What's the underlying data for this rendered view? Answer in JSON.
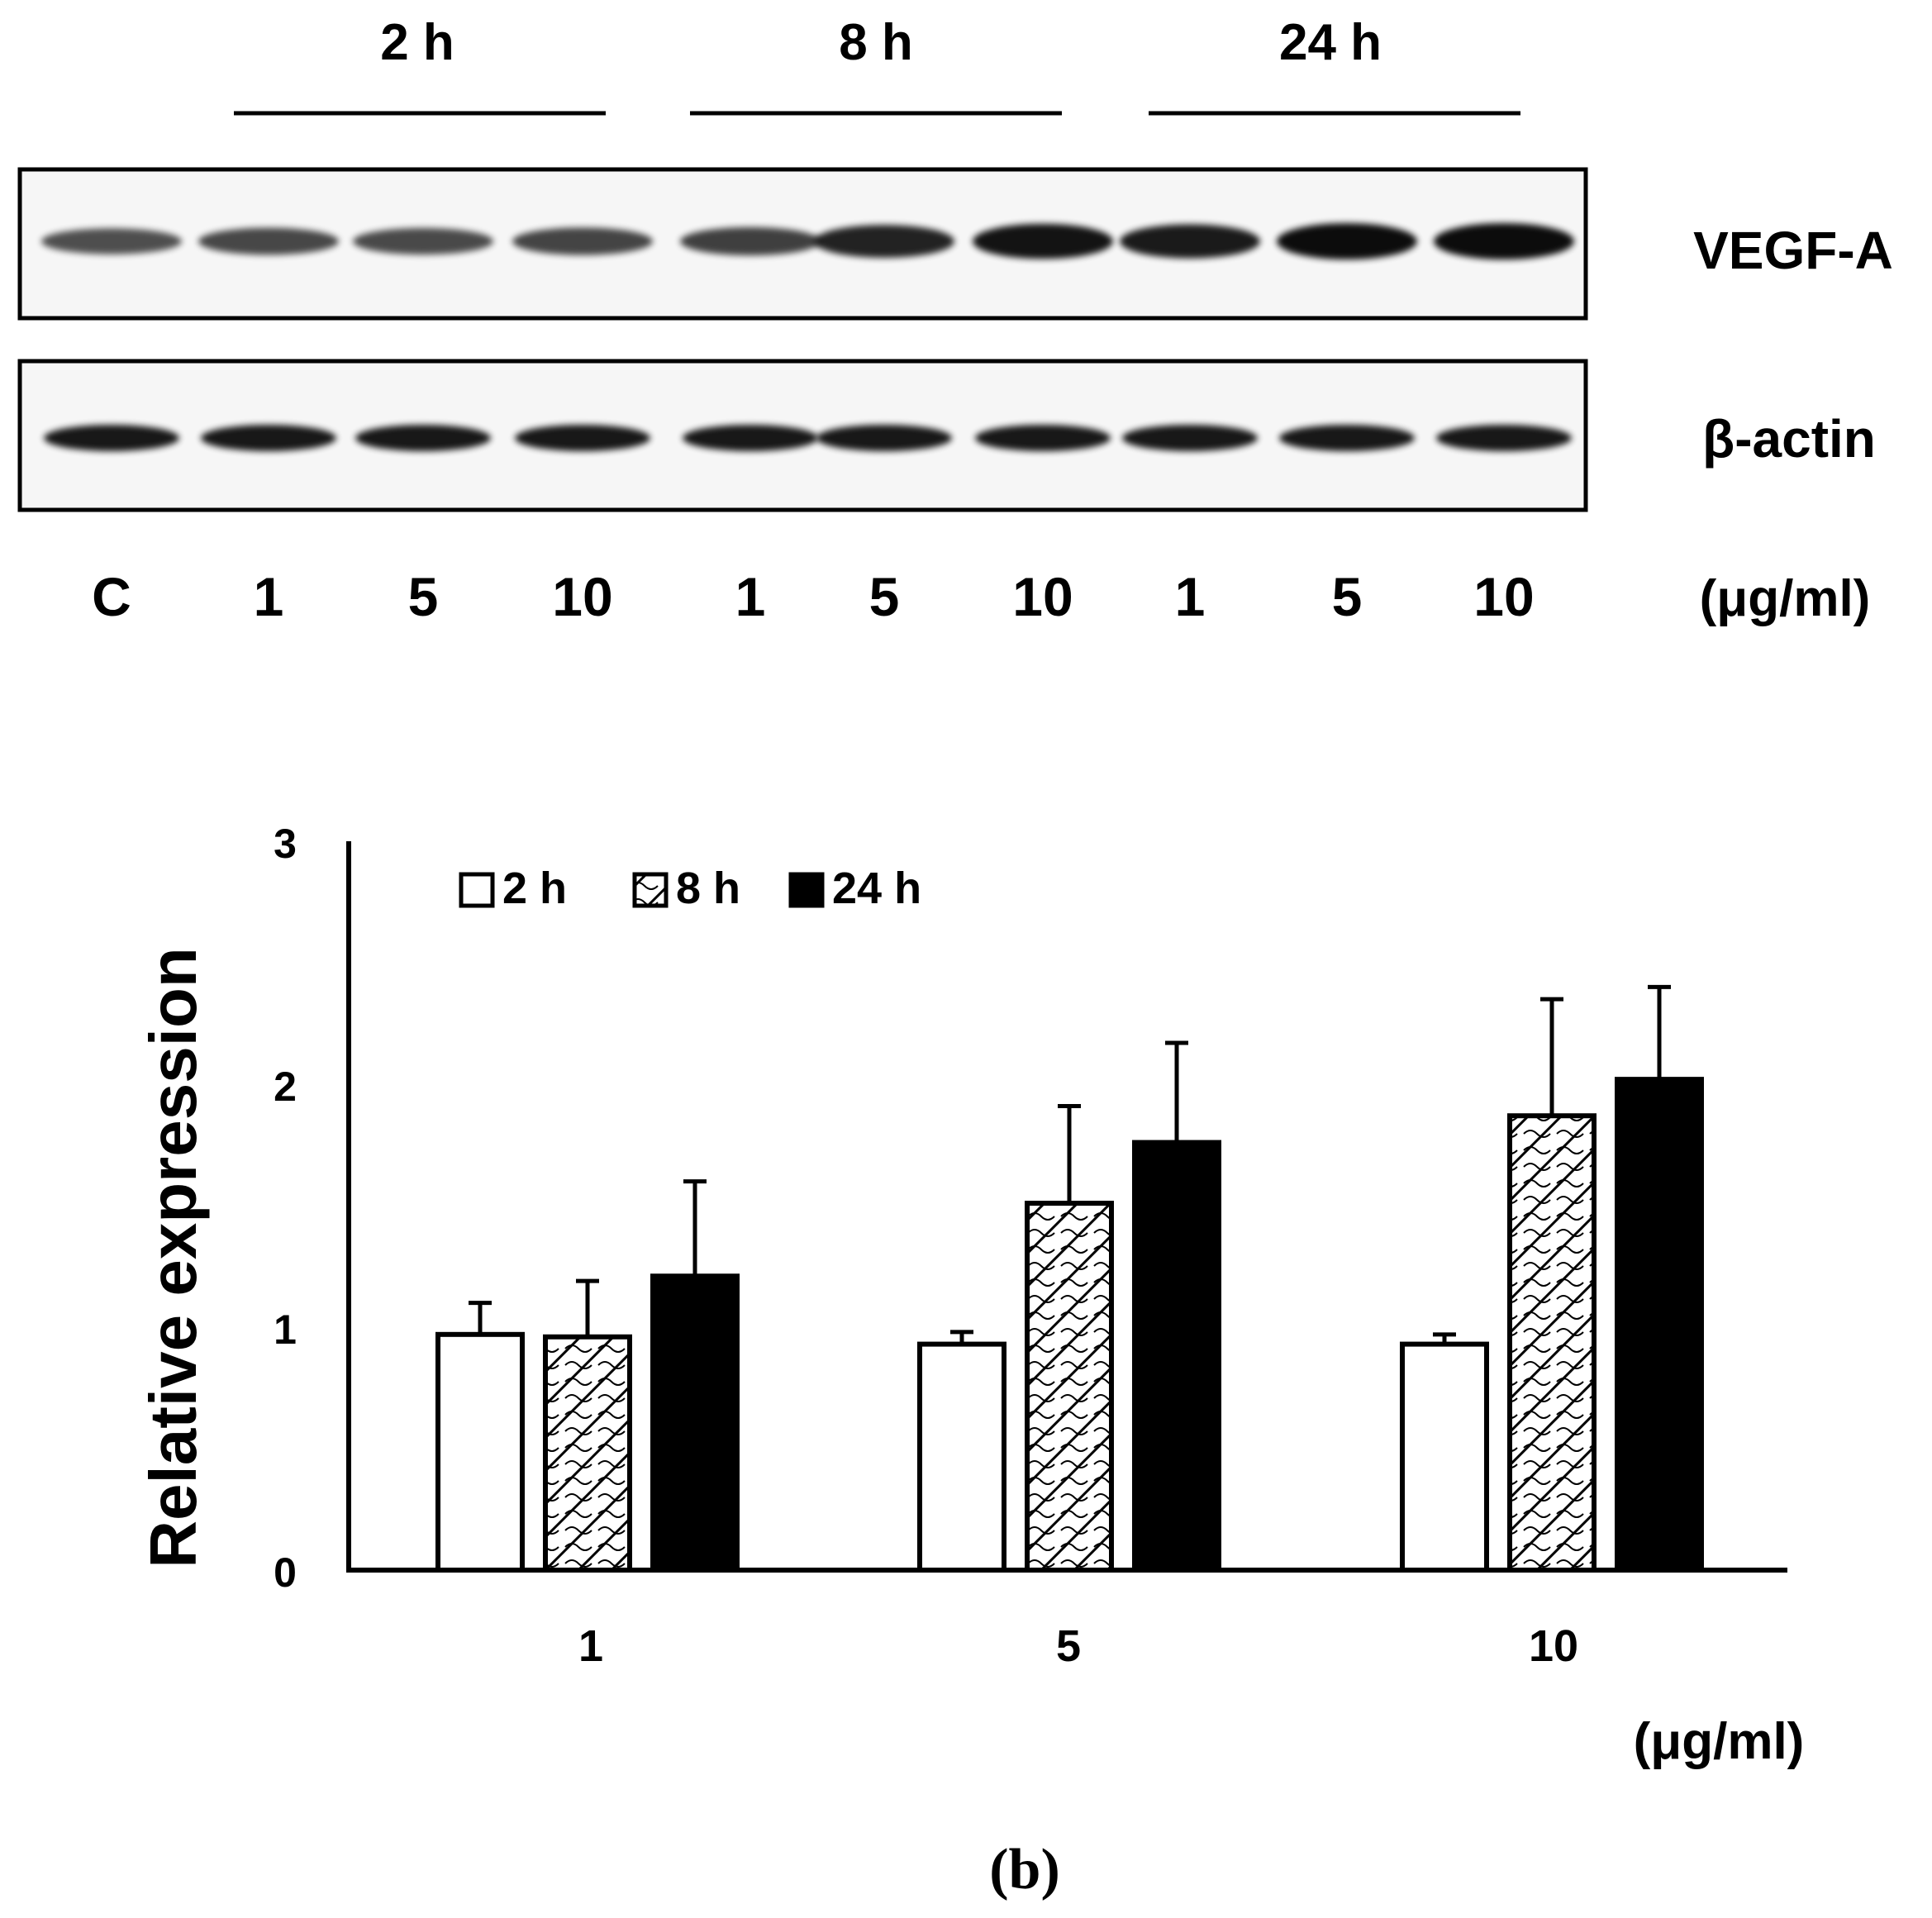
{
  "western_blot": {
    "time_groups": [
      "2 h",
      "8 h",
      "24 h"
    ],
    "lane_labels": [
      "C",
      "1",
      "5",
      "10",
      "1",
      "5",
      "10",
      "1",
      "5",
      "10"
    ],
    "unit_label": "(μg/ml)",
    "protein_labels": [
      "VEGF-A",
      "β-actin"
    ],
    "vegf_intensity": [
      0.55,
      0.6,
      0.58,
      0.62,
      0.65,
      0.85,
      0.95,
      0.9,
      1.0,
      1.0
    ],
    "actin_intensity": [
      1,
      1,
      1,
      1,
      1,
      1,
      1,
      1,
      1,
      1
    ]
  },
  "chart_data": {
    "type": "bar",
    "ylabel": "Relative expression",
    "xlabel": "(μg/ml)",
    "categories": [
      "1",
      "5",
      "10"
    ],
    "ylim": [
      0,
      3
    ],
    "yticks": [
      "0",
      "1",
      "2",
      "3"
    ],
    "legend_position": "top-left",
    "series": [
      {
        "name": "2 h",
        "fill": "white",
        "values": [
          0.97,
          0.93,
          0.93
        ],
        "errors": [
          0.13,
          0.05,
          0.04
        ]
      },
      {
        "name": "8 h",
        "fill": "hatch",
        "values": [
          0.96,
          1.51,
          1.87
        ],
        "errors": [
          0.23,
          0.4,
          0.48
        ]
      },
      {
        "name": "24 h",
        "fill": "black",
        "values": [
          1.21,
          1.76,
          2.02
        ],
        "errors": [
          0.39,
          0.41,
          0.38
        ]
      }
    ]
  },
  "panel_label": "(b)"
}
